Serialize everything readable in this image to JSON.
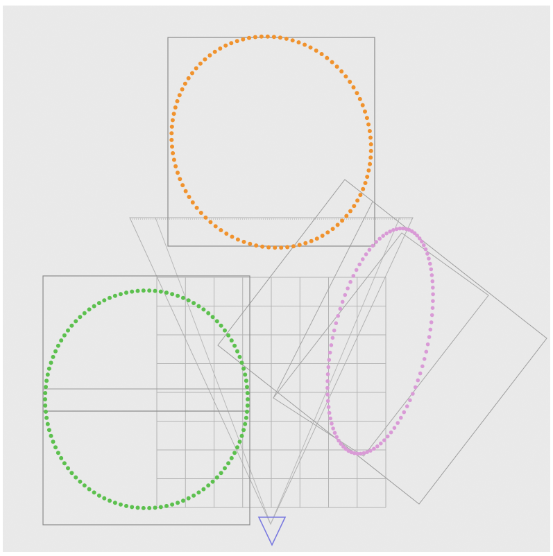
{
  "colors": {
    "background": "#e9e9e9",
    "page": "#ffffff",
    "frame": "#8a8a8a",
    "grid": "#b3b3b3",
    "thin_line": "#a9a9a9",
    "orange": "#f0922d",
    "green": "#5cc04e",
    "pink": "#d99ad6",
    "triangle": "#7a7ae0"
  },
  "shapes": {
    "orange_ellipse": {
      "name": "orange-dotted-ellipse",
      "color_key": "orange"
    },
    "green_ellipse": {
      "name": "green-dotted-ellipse",
      "color_key": "green"
    },
    "pink_ellipse": {
      "name": "pink-dotted-ellipse",
      "color_key": "pink"
    },
    "triangle_marker": {
      "name": "blue-triangle-marker",
      "color_key": "triangle"
    }
  }
}
